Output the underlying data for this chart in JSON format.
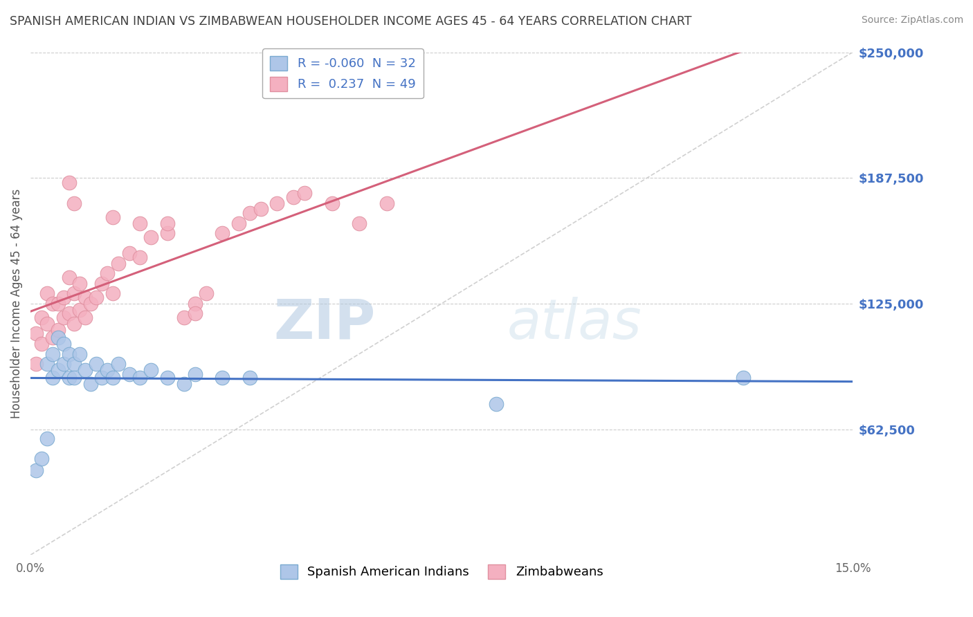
{
  "title": "SPANISH AMERICAN INDIAN VS ZIMBABWEAN HOUSEHOLDER INCOME AGES 45 - 64 YEARS CORRELATION CHART",
  "source": "Source: ZipAtlas.com",
  "ylabel": "Householder Income Ages 45 - 64 years",
  "watermark_zip": "ZIP",
  "watermark_atlas": "atlas",
  "xmin": 0.0,
  "xmax": 0.15,
  "ymin": 0,
  "ymax": 250000,
  "yticks": [
    62500,
    125000,
    187500,
    250000
  ],
  "ytick_labels": [
    "$62,500",
    "$125,000",
    "$187,500",
    "$250,000"
  ],
  "xticks": [
    0.0,
    0.03,
    0.06,
    0.09,
    0.12,
    0.15
  ],
  "xtick_labels": [
    "0.0%",
    "",
    "",
    "",
    "",
    "15.0%"
  ],
  "blue_scatter_x": [
    0.001,
    0.002,
    0.003,
    0.003,
    0.004,
    0.004,
    0.005,
    0.005,
    0.006,
    0.006,
    0.007,
    0.007,
    0.008,
    0.008,
    0.009,
    0.01,
    0.011,
    0.012,
    0.013,
    0.014,
    0.015,
    0.016,
    0.018,
    0.02,
    0.022,
    0.025,
    0.028,
    0.03,
    0.035,
    0.04,
    0.085,
    0.13
  ],
  "blue_scatter_y": [
    42000,
    48000,
    58000,
    95000,
    88000,
    100000,
    92000,
    108000,
    95000,
    105000,
    88000,
    100000,
    95000,
    88000,
    100000,
    92000,
    85000,
    95000,
    88000,
    92000,
    88000,
    95000,
    90000,
    88000,
    92000,
    88000,
    85000,
    90000,
    88000,
    88000,
    75000,
    88000
  ],
  "pink_scatter_x": [
    0.001,
    0.001,
    0.002,
    0.002,
    0.003,
    0.003,
    0.004,
    0.004,
    0.005,
    0.005,
    0.006,
    0.006,
    0.007,
    0.007,
    0.008,
    0.008,
    0.009,
    0.009,
    0.01,
    0.01,
    0.011,
    0.012,
    0.013,
    0.014,
    0.015,
    0.016,
    0.018,
    0.02,
    0.022,
    0.025,
    0.028,
    0.03,
    0.032,
    0.035,
    0.038,
    0.04,
    0.042,
    0.045,
    0.048,
    0.05,
    0.055,
    0.06,
    0.065,
    0.025,
    0.03,
    0.007,
    0.008,
    0.015,
    0.02
  ],
  "pink_scatter_y": [
    95000,
    110000,
    105000,
    118000,
    115000,
    130000,
    108000,
    125000,
    112000,
    125000,
    118000,
    128000,
    120000,
    138000,
    115000,
    130000,
    122000,
    135000,
    118000,
    128000,
    125000,
    128000,
    135000,
    140000,
    130000,
    145000,
    150000,
    148000,
    158000,
    160000,
    118000,
    125000,
    130000,
    160000,
    165000,
    170000,
    172000,
    175000,
    178000,
    180000,
    175000,
    165000,
    175000,
    165000,
    120000,
    185000,
    175000,
    168000,
    165000
  ],
  "blue_line_color": "#4472c4",
  "pink_line_color": "#d4607a",
  "grey_line_color": "#d0d0d0",
  "bg_color": "#ffffff",
  "grid_color": "#cccccc",
  "title_color": "#404040",
  "right_label_color": "#4472c4",
  "scatter_blue_color": "#aec6e8",
  "scatter_blue_edge": "#7aaad0",
  "scatter_pink_color": "#f4b0c0",
  "scatter_pink_edge": "#e090a0",
  "legend_r1": "R = -0.060",
  "legend_n1": "N = 32",
  "legend_r2": "R =  0.237",
  "legend_n2": "N = 49",
  "bottom_label1": "Spanish American Indians",
  "bottom_label2": "Zimbabweans"
}
